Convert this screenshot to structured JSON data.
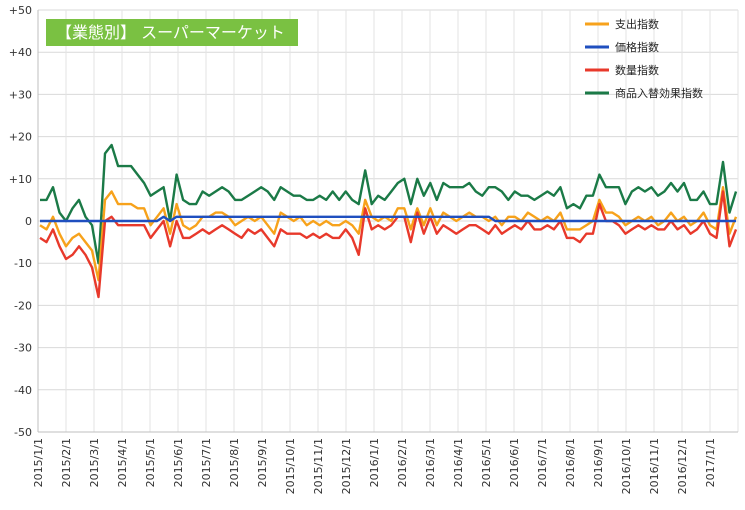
{
  "chart_data": {
    "type": "line",
    "title": "【業態別】 スーパーマーケット",
    "title_box_color": "#7ac142",
    "ylim": [
      -50,
      50
    ],
    "y_ticks": [
      -50,
      -40,
      -30,
      -20,
      -10,
      0,
      10,
      20,
      30,
      40,
      50
    ],
    "y_tick_labels": [
      "-50",
      "-40",
      "-30",
      "-20",
      "-10",
      "0",
      "+10",
      "+20",
      "+30",
      "+40",
      "+50"
    ],
    "grid": true,
    "x_tick_labels": [
      "2015/1/1",
      "2015/2/1",
      "2015/3/1",
      "2015/4/1",
      "2015/5/1",
      "2015/6/1",
      "2015/7/1",
      "2015/8/1",
      "2015/9/1",
      "2015/10/1",
      "2015/11/1",
      "2015/12/1",
      "2016/1/1",
      "2016/2/1",
      "2016/3/1",
      "2016/4/1",
      "2016/5/1",
      "2016/6/1",
      "2016/7/1",
      "2016/8/1",
      "2016/9/1",
      "2016/10/1",
      "2016/11/1",
      "2016/12/1",
      "2017/1/1"
    ],
    "legend_position": "top-right",
    "series": [
      {
        "name": "支出指数",
        "color": "#f7a21b",
        "values": [
          -1,
          -2,
          1,
          -3,
          -6,
          -4,
          -3,
          -5,
          -7,
          -14,
          5,
          7,
          4,
          4,
          4,
          3,
          3,
          -1,
          1,
          3,
          -3,
          4,
          -1,
          -2,
          -1,
          1,
          1,
          2,
          2,
          1,
          -1,
          0,
          1,
          0,
          1,
          -1,
          -3,
          2,
          1,
          0,
          1,
          -1,
          0,
          -1,
          0,
          -1,
          -1,
          0,
          -1,
          -3,
          5,
          1,
          0,
          1,
          0,
          3,
          3,
          -2,
          3,
          -1,
          3,
          -1,
          2,
          1,
          0,
          1,
          2,
          1,
          1,
          0,
          1,
          -1,
          1,
          1,
          0,
          2,
          1,
          0,
          1,
          0,
          2,
          -2,
          -2,
          -2,
          -1,
          0,
          5,
          2,
          2,
          1,
          -1,
          0,
          1,
          0,
          1,
          -1,
          0,
          2,
          0,
          1,
          -1,
          0,
          2,
          -1,
          -2,
          8,
          -3,
          1
        ]
      },
      {
        "name": "価格指数",
        "color": "#1f4fbf",
        "values": [
          0,
          0,
          0,
          0,
          0,
          0,
          0,
          0,
          0,
          0,
          0,
          0,
          0,
          0,
          0,
          0,
          0,
          0,
          0,
          1,
          0,
          1,
          1,
          1,
          1,
          1,
          1,
          1,
          1,
          1,
          1,
          1,
          1,
          1,
          1,
          1,
          1,
          1,
          1,
          1,
          1,
          1,
          1,
          1,
          1,
          1,
          1,
          1,
          1,
          1,
          1,
          1,
          1,
          1,
          1,
          1,
          1,
          1,
          1,
          1,
          1,
          1,
          1,
          1,
          1,
          1,
          1,
          1,
          1,
          1,
          0,
          0,
          0,
          0,
          0,
          0,
          0,
          0,
          0,
          0,
          0,
          0,
          0,
          0,
          0,
          0,
          0,
          0,
          0,
          0,
          0,
          0,
          0,
          0,
          0,
          0,
          0,
          0,
          0,
          0,
          0,
          0,
          0,
          0,
          0,
          0,
          0,
          0
        ]
      },
      {
        "name": "数量指数",
        "color": "#e8392b",
        "values": [
          -4,
          -5,
          -2,
          -6,
          -9,
          -8,
          -6,
          -8,
          -11,
          -18,
          0,
          1,
          -1,
          -1,
          -1,
          -1,
          -1,
          -4,
          -2,
          0,
          -6,
          0,
          -4,
          -4,
          -3,
          -2,
          -3,
          -2,
          -1,
          -2,
          -3,
          -4,
          -2,
          -3,
          -2,
          -4,
          -6,
          -2,
          -3,
          -3,
          -3,
          -4,
          -3,
          -4,
          -3,
          -4,
          -4,
          -2,
          -4,
          -8,
          3,
          -2,
          -1,
          -2,
          -1,
          1,
          1,
          -5,
          2,
          -3,
          1,
          -3,
          -1,
          -2,
          -3,
          -2,
          -1,
          -1,
          -2,
          -3,
          -1,
          -3,
          -2,
          -1,
          -2,
          0,
          -2,
          -2,
          -1,
          -2,
          0,
          -4,
          -4,
          -5,
          -3,
          -3,
          4,
          0,
          0,
          -1,
          -3,
          -2,
          -1,
          -2,
          -1,
          -2,
          -2,
          0,
          -2,
          -1,
          -3,
          -2,
          0,
          -3,
          -4,
          7,
          -6,
          -2
        ]
      },
      {
        "name": "商品入替効果指数",
        "color": "#1b7a47",
        "values": [
          5,
          5,
          8,
          2,
          0,
          3,
          5,
          1,
          -1,
          -10,
          16,
          18,
          13,
          13,
          13,
          11,
          9,
          6,
          7,
          8,
          0,
          11,
          5,
          4,
          4,
          7,
          6,
          7,
          8,
          7,
          5,
          5,
          6,
          7,
          8,
          7,
          5,
          8,
          7,
          6,
          6,
          5,
          5,
          6,
          5,
          7,
          5,
          7,
          5,
          4,
          12,
          4,
          6,
          5,
          7,
          9,
          10,
          4,
          10,
          6,
          9,
          5,
          9,
          8,
          8,
          8,
          9,
          7,
          6,
          8,
          8,
          7,
          5,
          7,
          6,
          6,
          5,
          6,
          7,
          6,
          8,
          3,
          4,
          3,
          6,
          6,
          11,
          8,
          8,
          8,
          4,
          7,
          8,
          7,
          8,
          6,
          7,
          9,
          7,
          9,
          5,
          5,
          7,
          4,
          4,
          14,
          2,
          7
        ]
      }
    ]
  }
}
